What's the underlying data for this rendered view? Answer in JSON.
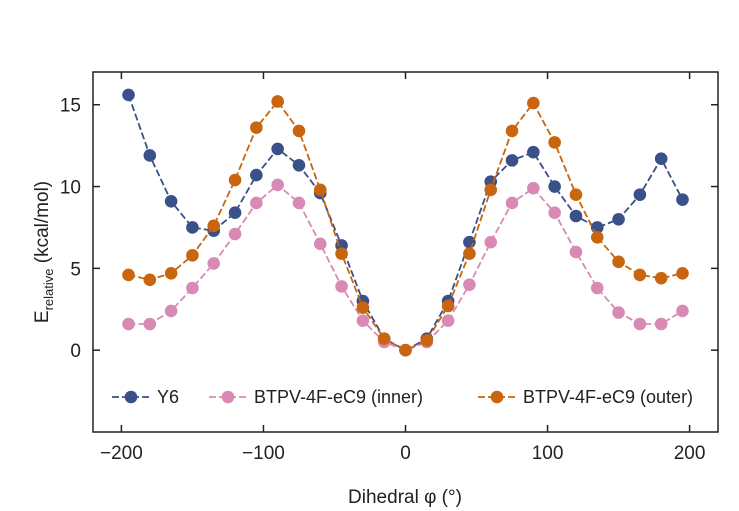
{
  "chart_data": {
    "type": "line",
    "title": "",
    "xlabel": "Dihedral φ (°)",
    "ylabel_main": "E",
    "ylabel_sub": "relative",
    "ylabel_rest": " (kcal/mol)",
    "xlim": [
      -220,
      220
    ],
    "ylim": [
      -5,
      17
    ],
    "xticks": [
      -200,
      -100,
      0,
      100,
      200
    ],
    "xtick_labels": [
      "−200",
      "−100",
      "0",
      "100",
      "200"
    ],
    "yticks": [
      0,
      5,
      10,
      15
    ],
    "ytick_labels": [
      "0",
      "5",
      "10",
      "15"
    ],
    "grid": false,
    "legend_position": "bottom",
    "series": [
      {
        "name": "Y6",
        "color": "#3a5088",
        "x": [
          -195,
          -180,
          -165,
          -150,
          -135,
          -120,
          -105,
          -90,
          -75,
          -60,
          -45,
          -30,
          -15,
          0,
          15,
          30,
          45,
          60,
          75,
          90,
          105,
          120,
          135,
          150,
          165,
          180,
          195
        ],
        "y": [
          15.6,
          11.9,
          9.1,
          7.5,
          7.3,
          8.4,
          10.7,
          12.3,
          11.3,
          9.6,
          6.4,
          3.0,
          0.7,
          0.0,
          0.7,
          3.0,
          6.6,
          10.3,
          11.6,
          12.1,
          10.0,
          8.2,
          7.5,
          8.0,
          9.5,
          11.7,
          9.2
        ]
      },
      {
        "name": "BTPV-4F-eC9 (inner)",
        "color": "#d98ab4",
        "x": [
          -195,
          -180,
          -165,
          -150,
          -135,
          -120,
          -105,
          -90,
          -75,
          -60,
          -45,
          -30,
          -15,
          0,
          15,
          30,
          45,
          60,
          75,
          90,
          105,
          120,
          135,
          150,
          165,
          180,
          195
        ],
        "y": [
          1.6,
          1.6,
          2.4,
          3.8,
          5.3,
          7.1,
          9.0,
          10.1,
          9.0,
          6.5,
          3.9,
          1.8,
          0.5,
          0.0,
          0.5,
          1.8,
          4.0,
          6.6,
          9.0,
          9.9,
          8.4,
          6.0,
          3.8,
          2.3,
          1.6,
          1.6,
          2.4
        ]
      },
      {
        "name": "BTPV-4F-eC9 (outer)",
        "color": "#c8650e",
        "x": [
          -195,
          -180,
          -165,
          -150,
          -135,
          -120,
          -105,
          -90,
          -75,
          -60,
          -45,
          -30,
          -15,
          0,
          15,
          30,
          45,
          60,
          75,
          90,
          105,
          120,
          135,
          150,
          165,
          180,
          195
        ],
        "y": [
          4.6,
          4.3,
          4.7,
          5.8,
          7.6,
          10.4,
          13.6,
          15.2,
          13.4,
          9.8,
          5.9,
          2.6,
          0.7,
          0.0,
          0.6,
          2.7,
          5.9,
          9.8,
          13.4,
          15.1,
          12.7,
          9.5,
          6.9,
          5.4,
          4.6,
          4.4,
          4.7
        ]
      }
    ]
  }
}
